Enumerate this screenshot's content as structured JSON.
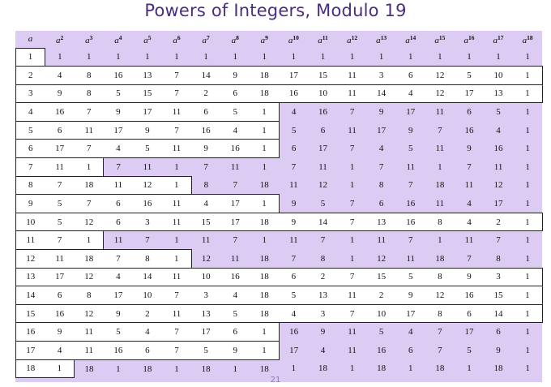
{
  "title": "Powers of Integers, Modulo 19",
  "page_number": "21",
  "headers": [
    "a",
    "a2",
    "a3",
    "a4",
    "a5",
    "a6",
    "a7",
    "a8",
    "a9",
    "a10",
    "a11",
    "a12",
    "a13",
    "a14",
    "a15",
    "a16",
    "a17",
    "a18"
  ],
  "rows": [
    [
      "1",
      "1",
      "1",
      "1",
      "1",
      "1",
      "1",
      "1",
      "1",
      "1",
      "1",
      "1",
      "1",
      "1",
      "1",
      "1",
      "1",
      "1"
    ],
    [
      "2",
      "4",
      "8",
      "16",
      "13",
      "7",
      "14",
      "9",
      "18",
      "17",
      "15",
      "11",
      "3",
      "6",
      "12",
      "5",
      "10",
      "1"
    ],
    [
      "3",
      "9",
      "8",
      "5",
      "15",
      "7",
      "2",
      "6",
      "18",
      "16",
      "10",
      "11",
      "14",
      "4",
      "12",
      "17",
      "13",
      "1"
    ],
    [
      "4",
      "16",
      "7",
      "9",
      "17",
      "11",
      "6",
      "5",
      "1",
      "4",
      "16",
      "7",
      "9",
      "17",
      "11",
      "6",
      "5",
      "1"
    ],
    [
      "5",
      "6",
      "11",
      "17",
      "9",
      "7",
      "16",
      "4",
      "1",
      "5",
      "6",
      "11",
      "17",
      "9",
      "7",
      "16",
      "4",
      "1"
    ],
    [
      "6",
      "17",
      "7",
      "4",
      "5",
      "11",
      "9",
      "16",
      "1",
      "6",
      "17",
      "7",
      "4",
      "5",
      "11",
      "9",
      "16",
      "1"
    ],
    [
      "7",
      "11",
      "1",
      "7",
      "11",
      "1",
      "7",
      "11",
      "1",
      "7",
      "11",
      "1",
      "7",
      "11",
      "1",
      "7",
      "11",
      "1"
    ],
    [
      "8",
      "7",
      "18",
      "11",
      "12",
      "1",
      "8",
      "7",
      "18",
      "11",
      "12",
      "1",
      "8",
      "7",
      "18",
      "11",
      "12",
      "1"
    ],
    [
      "9",
      "5",
      "7",
      "6",
      "16",
      "11",
      "4",
      "17",
      "1",
      "9",
      "5",
      "7",
      "6",
      "16",
      "11",
      "4",
      "17",
      "1"
    ],
    [
      "10",
      "5",
      "12",
      "6",
      "3",
      "11",
      "15",
      "17",
      "18",
      "9",
      "14",
      "7",
      "13",
      "16",
      "8",
      "4",
      "2",
      "1"
    ],
    [
      "11",
      "7",
      "1",
      "11",
      "7",
      "1",
      "11",
      "7",
      "1",
      "11",
      "7",
      "1",
      "11",
      "7",
      "1",
      "11",
      "7",
      "1"
    ],
    [
      "12",
      "11",
      "18",
      "7",
      "8",
      "1",
      "12",
      "11",
      "18",
      "7",
      "8",
      "1",
      "12",
      "11",
      "18",
      "7",
      "8",
      "1"
    ],
    [
      "13",
      "17",
      "12",
      "4",
      "14",
      "11",
      "10",
      "16",
      "18",
      "6",
      "2",
      "7",
      "15",
      "5",
      "8",
      "9",
      "3",
      "1"
    ],
    [
      "14",
      "6",
      "8",
      "17",
      "10",
      "7",
      "3",
      "4",
      "18",
      "5",
      "13",
      "11",
      "2",
      "9",
      "12",
      "16",
      "15",
      "1"
    ],
    [
      "15",
      "16",
      "12",
      "9",
      "2",
      "11",
      "13",
      "5",
      "18",
      "4",
      "3",
      "7",
      "10",
      "17",
      "8",
      "6",
      "14",
      "1"
    ],
    [
      "16",
      "9",
      "11",
      "5",
      "4",
      "7",
      "17",
      "6",
      "1",
      "16",
      "9",
      "11",
      "5",
      "4",
      "7",
      "17",
      "6",
      "1"
    ],
    [
      "17",
      "4",
      "11",
      "16",
      "6",
      "7",
      "5",
      "9",
      "1",
      "17",
      "4",
      "11",
      "16",
      "6",
      "7",
      "5",
      "9",
      "1"
    ],
    [
      "18",
      "1",
      "18",
      "1",
      "18",
      "1",
      "18",
      "1",
      "18",
      "1",
      "18",
      "1",
      "18",
      "1",
      "18",
      "1",
      "18",
      "1"
    ]
  ],
  "highlight_spans": [
    [
      0,
      0
    ],
    [
      0,
      17
    ],
    [
      0,
      17
    ],
    [
      0,
      8
    ],
    [
      0,
      8
    ],
    [
      0,
      8
    ],
    [
      0,
      2
    ],
    [
      0,
      5
    ],
    [
      0,
      8
    ],
    [
      0,
      17
    ],
    [
      0,
      2
    ],
    [
      0,
      5
    ],
    [
      0,
      17
    ],
    [
      0,
      17
    ],
    [
      0,
      17
    ],
    [
      0,
      8
    ],
    [
      0,
      8
    ],
    [
      0,
      1
    ]
  ]
}
